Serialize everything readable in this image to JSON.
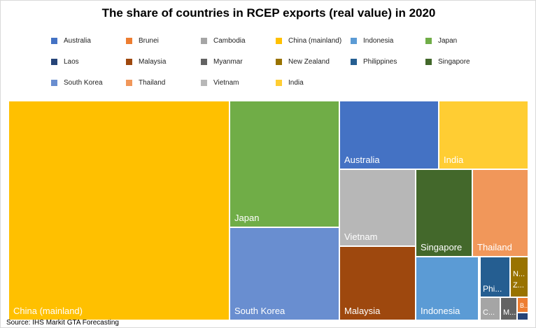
{
  "chart_data": {
    "type": "treemap",
    "title": "The share of countries in RCEP exports (real value) in 2020",
    "source": "Source: IHS Markit GTA Forecasting",
    "legend": [
      {
        "name": "Australia",
        "color": "#4472C4"
      },
      {
        "name": "Brunei",
        "color": "#ED7D31"
      },
      {
        "name": "Cambodia",
        "color": "#A5A5A5"
      },
      {
        "name": "China (mainland)",
        "color": "#FFC000"
      },
      {
        "name": "Indonesia",
        "color": "#5B9BD5"
      },
      {
        "name": "Japan",
        "color": "#70AD47"
      },
      {
        "name": "Laos",
        "color": "#264478"
      },
      {
        "name": "Malaysia",
        "color": "#9E480E"
      },
      {
        "name": "Myanmar",
        "color": "#636363"
      },
      {
        "name": "New Zealand",
        "color": "#997300"
      },
      {
        "name": "Philippines",
        "color": "#255E91"
      },
      {
        "name": "Singapore",
        "color": "#43682B"
      },
      {
        "name": "South Korea",
        "color": "#698ED0"
      },
      {
        "name": "Thailand",
        "color": "#F1975A"
      },
      {
        "name": "Vietnam",
        "color": "#B7B7B7"
      },
      {
        "name": "India",
        "color": "#FFCD33"
      }
    ],
    "tiles": [
      {
        "name": "China (mainland)",
        "label": "China (mainland)",
        "color": "#FFC000"
      },
      {
        "name": "Japan",
        "label": "Japan",
        "color": "#70AD47"
      },
      {
        "name": "South Korea",
        "label": "South Korea",
        "color": "#698ED0"
      },
      {
        "name": "Australia",
        "label": "Australia",
        "color": "#4472C4"
      },
      {
        "name": "India",
        "label": "India",
        "color": "#FFCD33"
      },
      {
        "name": "Vietnam",
        "label": "Vietnam",
        "color": "#B7B7B7"
      },
      {
        "name": "Malaysia",
        "label": "Malaysia",
        "color": "#9E480E"
      },
      {
        "name": "Singapore",
        "label": "Singapore",
        "color": "#43682B"
      },
      {
        "name": "Thailand",
        "label": "Thailand",
        "color": "#F1975A"
      },
      {
        "name": "Indonesia",
        "label": "Indonesia",
        "color": "#5B9BD5"
      },
      {
        "name": "Philippines",
        "label": "Phi...",
        "color": "#255E91"
      },
      {
        "name": "New Zealand",
        "label": "N... Z...",
        "color": "#997300"
      },
      {
        "name": "Cambodia",
        "label": "C...",
        "color": "#A5A5A5"
      },
      {
        "name": "Myanmar",
        "label": "M...",
        "color": "#636363"
      },
      {
        "name": "Brunei",
        "label": "B...",
        "color": "#ED7D31"
      },
      {
        "name": "Laos",
        "label": "",
        "color": "#264478"
      }
    ]
  }
}
